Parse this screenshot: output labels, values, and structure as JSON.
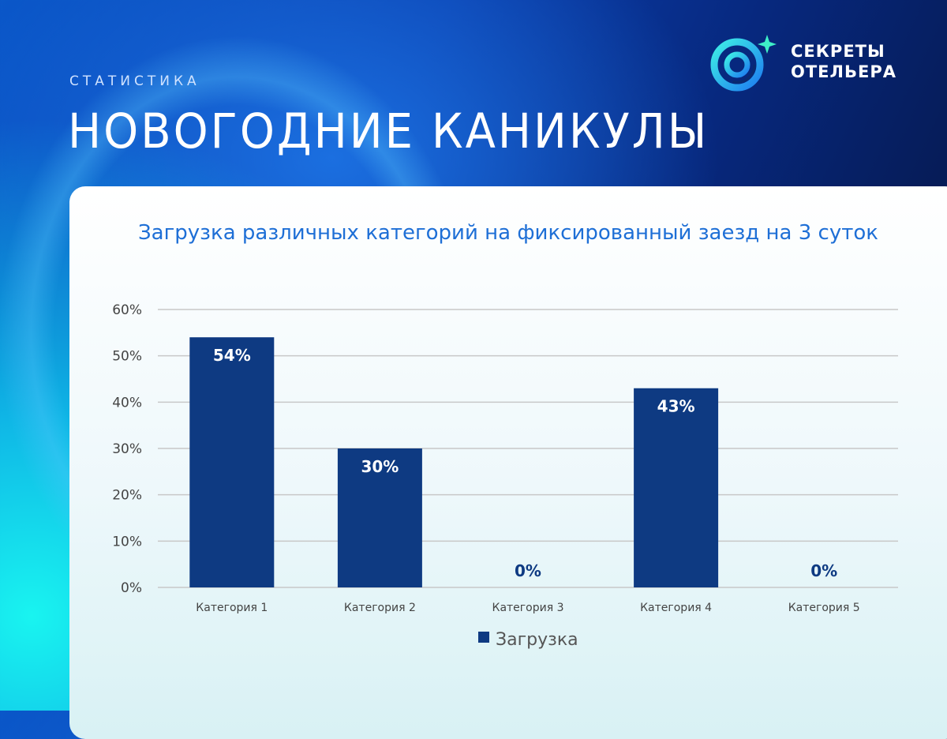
{
  "header": {
    "eyebrow": "СТАТИСТИКА",
    "title": "НОВОГОДНИЕ КАНИКУЛЫ"
  },
  "logo": {
    "line1": "СЕКРЕТЫ",
    "line2": "ОТЕЛЬЕРА",
    "icon": "sparkle-ring-icon"
  },
  "colors": {
    "bar": "#0e3a82",
    "title": "#1e6fd6",
    "grid": "#c8c8c8"
  },
  "chart_data": {
    "type": "bar",
    "title": "Загрузка различных категорий на фиксированный заезд на 3 суток",
    "categories": [
      "Категория 1",
      "Категория 2",
      "Категория 3",
      "Категория 4",
      "Категория 5"
    ],
    "series": [
      {
        "name": "Загрузка",
        "values": [
          54,
          30,
          0,
          43,
          0
        ]
      }
    ],
    "data_labels": [
      "54%",
      "30%",
      "0%",
      "43%",
      "0%"
    ],
    "yticks": [
      "0%",
      "10%",
      "20%",
      "30%",
      "40%",
      "50%",
      "60%"
    ],
    "ylim": [
      0,
      60
    ],
    "grid": true,
    "legend_position": "bottom"
  }
}
